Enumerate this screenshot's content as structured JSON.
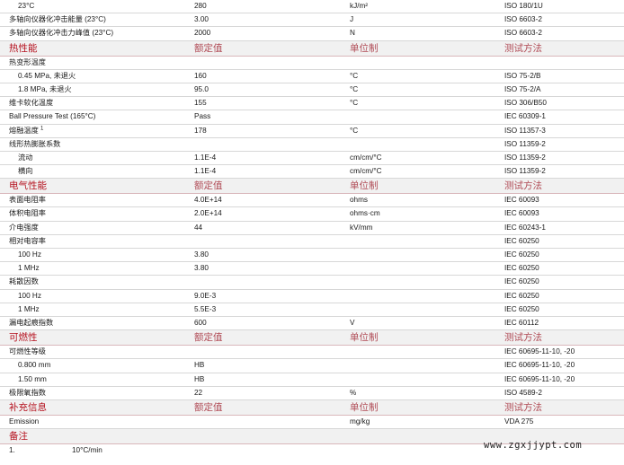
{
  "top_rows": [
    {
      "name": "23°C",
      "value": "280",
      "unit": "kJ/m²",
      "method": "ISO 180/1U"
    },
    {
      "name": "多轴向仪器化冲击能量 (23°C)",
      "value": "3.00",
      "unit": "J",
      "method": "ISO 6603-2"
    },
    {
      "name": "多轴向仪器化冲击力峰值 (23°C)",
      "value": "2000",
      "unit": "N",
      "method": "ISO 6603-2"
    }
  ],
  "sections": [
    {
      "title": "热性能",
      "col2": "额定值",
      "col3": "单位制",
      "col4": "测试方法",
      "rows": [
        {
          "name": "热变形温度",
          "value": "",
          "unit": "",
          "method": ""
        },
        {
          "name": "0.45 MPa, 未退火",
          "value": "160",
          "unit": "°C",
          "method": "ISO 75-2/B"
        },
        {
          "name": "1.8 MPa, 未退火",
          "value": "95.0",
          "unit": "°C",
          "method": "ISO 75-2/A"
        },
        {
          "name": "维卡软化温度",
          "value": "155",
          "unit": "°C",
          "method": "ISO 306/B50"
        },
        {
          "name": "Ball Pressure Test (165°C)",
          "value": "Pass",
          "unit": "",
          "method": "IEC 60309-1"
        },
        {
          "name": "熔融温度",
          "sup": "1",
          "value": "178",
          "unit": "°C",
          "method": "ISO 11357-3"
        },
        {
          "name": "线形热膨胀系数",
          "value": "",
          "unit": "",
          "method": "ISO 11359-2"
        },
        {
          "name": "流动",
          "value": "1.1E-4",
          "unit": "cm/cm/°C",
          "method": "ISO 11359-2"
        },
        {
          "name": "横向",
          "value": "1.1E-4",
          "unit": "cm/cm/°C",
          "method": "ISO 11359-2"
        }
      ]
    },
    {
      "title": "电气性能",
      "col2": "额定值",
      "col3": "单位制",
      "col4": "测试方法",
      "rows": [
        {
          "name": "表面电阻率",
          "value": "4.0E+14",
          "unit": "ohms",
          "method": "IEC 60093"
        },
        {
          "name": "体积电阻率",
          "value": "2.0E+14",
          "unit": "ohms·cm",
          "method": "IEC 60093"
        },
        {
          "name": "介电强度",
          "value": "44",
          "unit": "kV/mm",
          "method": "IEC 60243-1"
        },
        {
          "name": "相对电容率",
          "value": "",
          "unit": "",
          "method": "IEC 60250"
        },
        {
          "name": "100 Hz",
          "value": "3.80",
          "unit": "",
          "method": "IEC 60250"
        },
        {
          "name": "1 MHz",
          "value": "3.80",
          "unit": "",
          "method": "IEC 60250"
        },
        {
          "name": "耗散因数",
          "value": "",
          "unit": "",
          "method": "IEC 60250"
        },
        {
          "name": "100 Hz",
          "value": "9.0E-3",
          "unit": "",
          "method": "IEC 60250"
        },
        {
          "name": "1 MHz",
          "value": "5.5E-3",
          "unit": "",
          "method": "IEC 60250"
        },
        {
          "name": "漏电起痕指数",
          "value": "600",
          "unit": "V",
          "method": "IEC 60112"
        }
      ]
    },
    {
      "title": "可燃性",
      "col2": "额定值",
      "col3": "单位制",
      "col4": "测试方法",
      "rows": [
        {
          "name": "可燃性等级",
          "value": "",
          "unit": "",
          "method": "IEC 60695-11-10, -20"
        },
        {
          "name": "0.800 mm",
          "value": "HB",
          "unit": "",
          "method": "IEC 60695-11-10, -20"
        },
        {
          "name": "1.50 mm",
          "value": "HB",
          "unit": "",
          "method": "IEC 60695-11-10, -20"
        },
        {
          "name": "极限氧指数",
          "value": "22",
          "unit": "%",
          "method": "ISO 4589-2"
        }
      ]
    },
    {
      "title": "补充信息",
      "col2": "额定值",
      "col3": "单位制",
      "col4": "测试方法",
      "rows": [
        {
          "name": "Emission",
          "value": "",
          "unit": "mg/kg",
          "method": "VDA 275"
        }
      ]
    }
  ],
  "notes": {
    "title": "备注",
    "items": [
      {
        "num": "1.",
        "text": "10°C/min"
      }
    ]
  },
  "watermark": "www.zgxjjypt.com"
}
